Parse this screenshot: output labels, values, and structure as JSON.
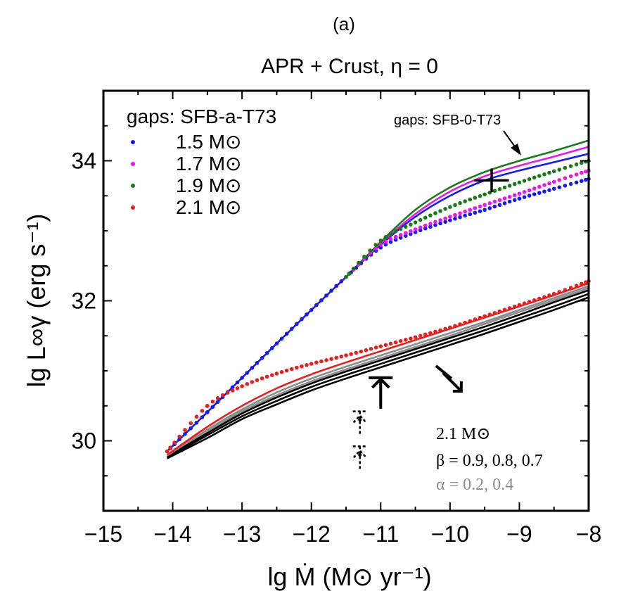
{
  "panel_label": "(a)",
  "chart_data": {
    "type": "line",
    "title": "APR + Crust, η = 0",
    "xlabel": "lg Ṁ (M⊙ yr⁻¹)",
    "ylabel": "lg L∞γ (erg s⁻¹)",
    "xlim": [
      -15,
      -8
    ],
    "ylim": [
      29,
      35
    ],
    "x_ticks": [
      -15,
      -14,
      -13,
      -12,
      -11,
      -10,
      -9,
      -8
    ],
    "x_tick_labels": [
      "−15",
      "−14",
      "−13",
      "−12",
      "−11",
      "−10",
      "−9",
      "−8"
    ],
    "y_ticks": [
      30,
      32,
      34
    ],
    "y_tick_labels": [
      "30",
      "32",
      "34"
    ],
    "grid": false,
    "legend_title": "gaps: SFB-a-T73",
    "legend_position": "top-left",
    "series": [
      {
        "name": "1.5 M⊙",
        "style": "dotted",
        "color": "#1a1ae6",
        "x": [
          -14.08,
          -13.5,
          -13,
          -12.5,
          -12,
          -11.5,
          -11,
          -10.5,
          -10,
          -9.5,
          -9,
          -8.5,
          -8
        ],
        "y": [
          29.85,
          30.41,
          30.9,
          31.39,
          31.87,
          32.34,
          32.76,
          32.98,
          33.15,
          33.3,
          33.46,
          33.6,
          33.74
        ]
      },
      {
        "name": "1.7 M⊙",
        "style": "dotted",
        "color": "#e619e6",
        "x": [
          -11.5,
          -11,
          -10.5,
          -10,
          -9.5,
          -9,
          -8.5,
          -8
        ],
        "y": [
          32.34,
          32.8,
          33.02,
          33.2,
          33.37,
          33.53,
          33.7,
          33.86
        ]
      },
      {
        "name": "1.9 M⊙",
        "style": "dotted",
        "color": "#1a7a1a",
        "x": [
          -11.5,
          -11,
          -10.5,
          -10,
          -9.5,
          -9,
          -8.5,
          -8
        ],
        "y": [
          32.34,
          32.86,
          33.12,
          33.34,
          33.52,
          33.69,
          33.85,
          34.0
        ]
      },
      {
        "name": "2.1 M⊙",
        "style": "dotted",
        "color": "#e62020",
        "x": [
          -14.08,
          -13.5,
          -13,
          -12.5,
          -12,
          -11.5,
          -11,
          -10.5,
          -10,
          -9.5,
          -9,
          -8.5,
          -8
        ],
        "y": [
          29.85,
          30.5,
          30.78,
          30.96,
          31.1,
          31.22,
          31.35,
          31.48,
          31.62,
          31.78,
          31.94,
          32.1,
          32.28
        ]
      }
    ],
    "reference_curves": [
      {
        "label": "gaps: SFB-0-T73 1.5 M⊙",
        "style": "solid",
        "color": "#1a1ae6",
        "x": [
          -14.08,
          -13.5,
          -13,
          -12.5,
          -12,
          -11.5,
          -11,
          -10.5,
          -10,
          -9.5,
          -9,
          -8.5,
          -8
        ],
        "y": [
          29.85,
          30.41,
          30.9,
          31.39,
          31.87,
          32.34,
          32.8,
          33.2,
          33.5,
          33.72,
          33.86,
          33.98,
          34.1
        ]
      },
      {
        "label": "gaps: SFB-0-T73 1.7 M⊙",
        "style": "solid",
        "color": "#e619e6",
        "x": [
          -11.5,
          -11,
          -10.5,
          -10,
          -9.5,
          -9,
          -8.5,
          -8
        ],
        "y": [
          32.34,
          32.82,
          33.24,
          33.56,
          33.78,
          33.93,
          34.06,
          34.2
        ]
      },
      {
        "label": "gaps: SFB-0-T73 1.9 M⊙",
        "style": "solid",
        "color": "#1a7a1a",
        "x": [
          -11.5,
          -11,
          -10.5,
          -10,
          -9.5,
          -9,
          -8.5,
          -8
        ],
        "y": [
          32.34,
          32.84,
          33.3,
          33.62,
          33.84,
          34.0,
          34.14,
          34.29
        ]
      },
      {
        "label": "2.1 M⊙ red solid",
        "style": "solid",
        "color": "#e62020",
        "x": [
          -14.08,
          -13.5,
          -13,
          -12.5,
          -12,
          -11.5,
          -11,
          -10.5,
          -10,
          -9.5,
          -9,
          -8.5,
          -8
        ],
        "y": [
          29.8,
          30.2,
          30.5,
          30.75,
          30.95,
          31.12,
          31.28,
          31.44,
          31.6,
          31.76,
          31.92,
          32.08,
          32.25
        ]
      },
      {
        "label": "α = 0.2",
        "style": "solid",
        "color": "#8c8c8c",
        "x": [
          -14.08,
          -13.5,
          -13,
          -12.5,
          -12,
          -11.5,
          -11,
          -10.5,
          -10,
          -9.5,
          -9,
          -8.5,
          -8
        ],
        "y": [
          29.79,
          30.16,
          30.45,
          30.69,
          30.89,
          31.06,
          31.22,
          31.38,
          31.54,
          31.7,
          31.87,
          32.04,
          32.21
        ]
      },
      {
        "label": "α = 0.4",
        "style": "solid",
        "color": "#8c8c8c",
        "x": [
          -14.08,
          -13.5,
          -13,
          -12.5,
          -12,
          -11.5,
          -11,
          -10.5,
          -10,
          -9.5,
          -9,
          -8.5,
          -8
        ],
        "y": [
          29.78,
          30.13,
          30.42,
          30.65,
          30.85,
          31.02,
          31.18,
          31.34,
          31.5,
          31.67,
          31.84,
          32.01,
          32.18
        ]
      },
      {
        "label": "β = 0.9",
        "style": "solid",
        "color": "#000000",
        "x": [
          -14.08,
          -13.5,
          -13,
          -12.5,
          -12,
          -11.5,
          -11,
          -10.5,
          -10,
          -9.5,
          -9,
          -8.5,
          -8
        ],
        "y": [
          29.77,
          30.11,
          30.39,
          30.62,
          30.82,
          30.99,
          31.15,
          31.31,
          31.47,
          31.63,
          31.8,
          31.98,
          32.15
        ]
      },
      {
        "label": "β = 0.8",
        "style": "solid",
        "color": "#000000",
        "x": [
          -14.08,
          -13.5,
          -13,
          -12.5,
          -12,
          -11.5,
          -11,
          -10.5,
          -10,
          -9.5,
          -9,
          -8.5,
          -8
        ],
        "y": [
          29.76,
          30.08,
          30.35,
          30.57,
          30.77,
          30.94,
          31.1,
          31.26,
          31.42,
          31.58,
          31.75,
          31.92,
          32.1
        ]
      },
      {
        "label": "β = 0.7",
        "style": "solid",
        "color": "#000000",
        "x": [
          -14.08,
          -13.5,
          -13,
          -12.5,
          -12,
          -11.5,
          -11,
          -10.5,
          -10,
          -9.5,
          -9,
          -8.5,
          -8
        ],
        "y": [
          29.75,
          30.04,
          30.31,
          30.52,
          30.72,
          30.89,
          31.05,
          31.21,
          31.37,
          31.53,
          31.7,
          31.87,
          32.05
        ]
      }
    ],
    "observations": [
      {
        "kind": "error-cross",
        "x": -9.4,
        "y": 33.72,
        "xerr": 0.25,
        "yerr": 0.17
      },
      {
        "kind": "upper-limit-arrow",
        "x": -10.0,
        "y": 30.95
      },
      {
        "kind": "lower-limit-arrow",
        "x": -11.0,
        "y": 30.68
      },
      {
        "kind": "dashed-limit",
        "x": -11.3,
        "y": 30.2
      },
      {
        "kind": "dashed-limit",
        "x": -11.3,
        "y": 29.7
      }
    ],
    "annotations": {
      "reference_label": "gaps: SFB-0-T73",
      "model_mass": "2.1 M⊙",
      "beta_label": "β = 0.9, 0.8, 0.7",
      "alpha_label": "α = 0.2, 0.4"
    }
  }
}
